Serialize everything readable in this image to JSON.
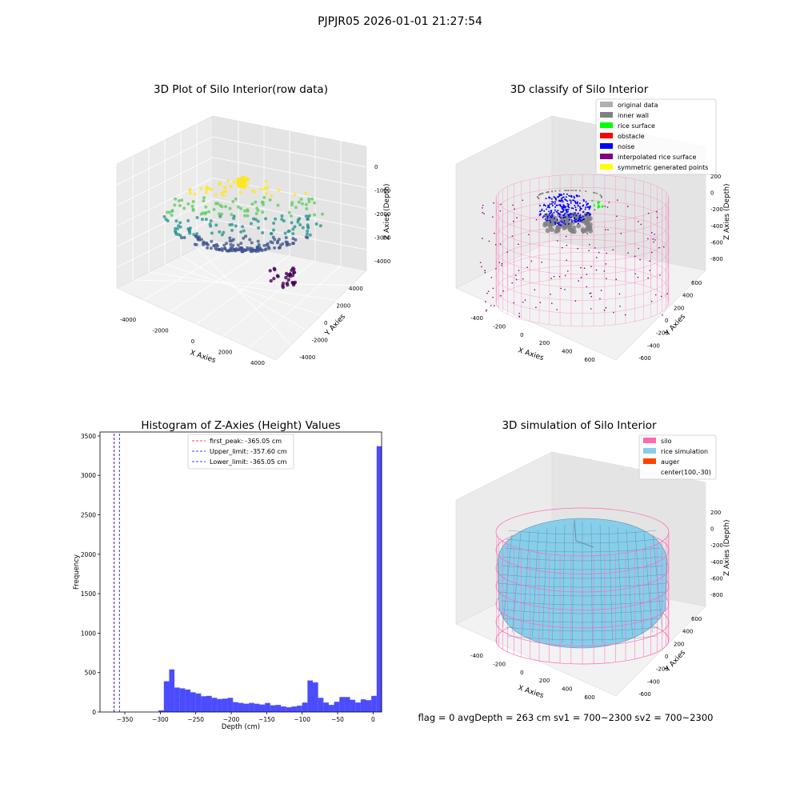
{
  "figure": {
    "suptitle": "PJPJR05 2026-01-01 21:27:54",
    "footer": "flag = 0     avgDepth = 263 cm  sv1 = 700~2300  sv2 = 700~2300"
  },
  "chart_data": [
    {
      "type": "scatter",
      "subtype": "3d",
      "title": "3D Plot of Silo Interior(row data)",
      "xlabel": "X Axies",
      "ylabel": "Y Axies",
      "zlabel": "Z Axies (Depth)",
      "xticks": [
        "-4000",
        "-2000",
        "0",
        "2000",
        "4000"
      ],
      "yticks": [
        "-4000",
        "-2000",
        "0",
        "2000",
        "4000"
      ],
      "zticks": [
        "0",
        "-1000",
        "-2000",
        "-3000",
        "-4000"
      ],
      "xlim": [
        -4600,
        4600
      ],
      "ylim": [
        -4600,
        4600
      ],
      "zlim": [
        -4600,
        300
      ],
      "colormap": [
        "#440154",
        "#3b528b",
        "#21918c",
        "#5ec962",
        "#fde725"
      ],
      "description_series": "wall ring points and scattered interior points colored by depth, yellow cluster near top"
    },
    {
      "type": "scatter",
      "subtype": "3d",
      "title": "3D classify of Silo Interior",
      "xlabel": "X Axies",
      "ylabel": "Y Axies",
      "zlabel": "Z Axies (Depth)",
      "xticks": [
        "-400",
        "-200",
        "0",
        "200",
        "400",
        "600"
      ],
      "yticks": [
        "-600",
        "-400",
        "-200",
        "0",
        "200",
        "400",
        "600"
      ],
      "zticks": [
        "200",
        "0",
        "-200",
        "-400",
        "-600",
        "-800"
      ],
      "legend": [
        {
          "label": "original data",
          "color": "#b0b0b0"
        },
        {
          "label": "inner wall",
          "color": "#808080"
        },
        {
          "label": "rice surface",
          "color": "#00ff00"
        },
        {
          "label": "obstacle",
          "color": "#ff0000"
        },
        {
          "label": "noise",
          "color": "#0000ff"
        },
        {
          "label": "interpolated rice surface",
          "color": "#800080"
        },
        {
          "label": "symmetric generated points",
          "color": "#ffff00"
        }
      ],
      "legend_loc": "upper right",
      "mesh_color": "#ff69b4"
    },
    {
      "type": "bar",
      "subtype": "histogram",
      "title": "Histogram of Z-Axies (Height) Values",
      "xlabel": "Depth (cm)",
      "ylabel": "Frequency",
      "xlim": [
        -385,
        12
      ],
      "ylim": [
        0,
        3550
      ],
      "xticks": [
        -350,
        -300,
        -250,
        -200,
        -150,
        -100,
        -50,
        0
      ],
      "xtick_labels": [
        "−350",
        "−300",
        "−250",
        "−200",
        "−150",
        "−100",
        "−50",
        "0"
      ],
      "yticks": [
        0,
        500,
        1000,
        1500,
        2000,
        2500,
        3000,
        3500
      ],
      "bin_width": 7.5,
      "bin_start": -302.5,
      "values": [
        20,
        390,
        540,
        310,
        300,
        285,
        250,
        235,
        200,
        205,
        180,
        165,
        170,
        180,
        125,
        115,
        105,
        115,
        105,
        95,
        115,
        85,
        90,
        70,
        60,
        70,
        80,
        120,
        400,
        375,
        180,
        120,
        90,
        130,
        190,
        190,
        155,
        120,
        160,
        150,
        205,
        3370
      ],
      "bar_color": "#0000ff",
      "lines": [
        {
          "label": "first_peak: -365.05 cm",
          "x": -365.05,
          "color": "#ff0000"
        },
        {
          "label": "Upper_limit: -357.60 cm",
          "x": -357.6,
          "color": "#0000ff"
        },
        {
          "label": "Lower_limit: -365.05 cm",
          "x": -365.05,
          "color": "#0000ff"
        }
      ],
      "legend_loc": "upper center"
    },
    {
      "type": "area",
      "subtype": "3d-surface",
      "title": "3D simulation of Silo Interior",
      "xlabel": "X Axies",
      "ylabel": "Y Axies",
      "zlabel": "Z Axies (Depth)",
      "xticks": [
        "-400",
        "-200",
        "0",
        "200",
        "400",
        "600"
      ],
      "yticks": [
        "-600",
        "-400",
        "-200",
        "0",
        "200",
        "400",
        "600"
      ],
      "zticks": [
        "200",
        "0",
        "-200",
        "-400",
        "-600",
        "-800"
      ],
      "legend": [
        {
          "label": "silo",
          "color": "#ff69b4"
        },
        {
          "label": "rice simulation",
          "color": "#87ceeb"
        },
        {
          "label": "auger",
          "color": "#ff4500"
        },
        {
          "label": "center(100,-30)",
          "color": ""
        }
      ],
      "legend_loc": "upper right"
    }
  ]
}
